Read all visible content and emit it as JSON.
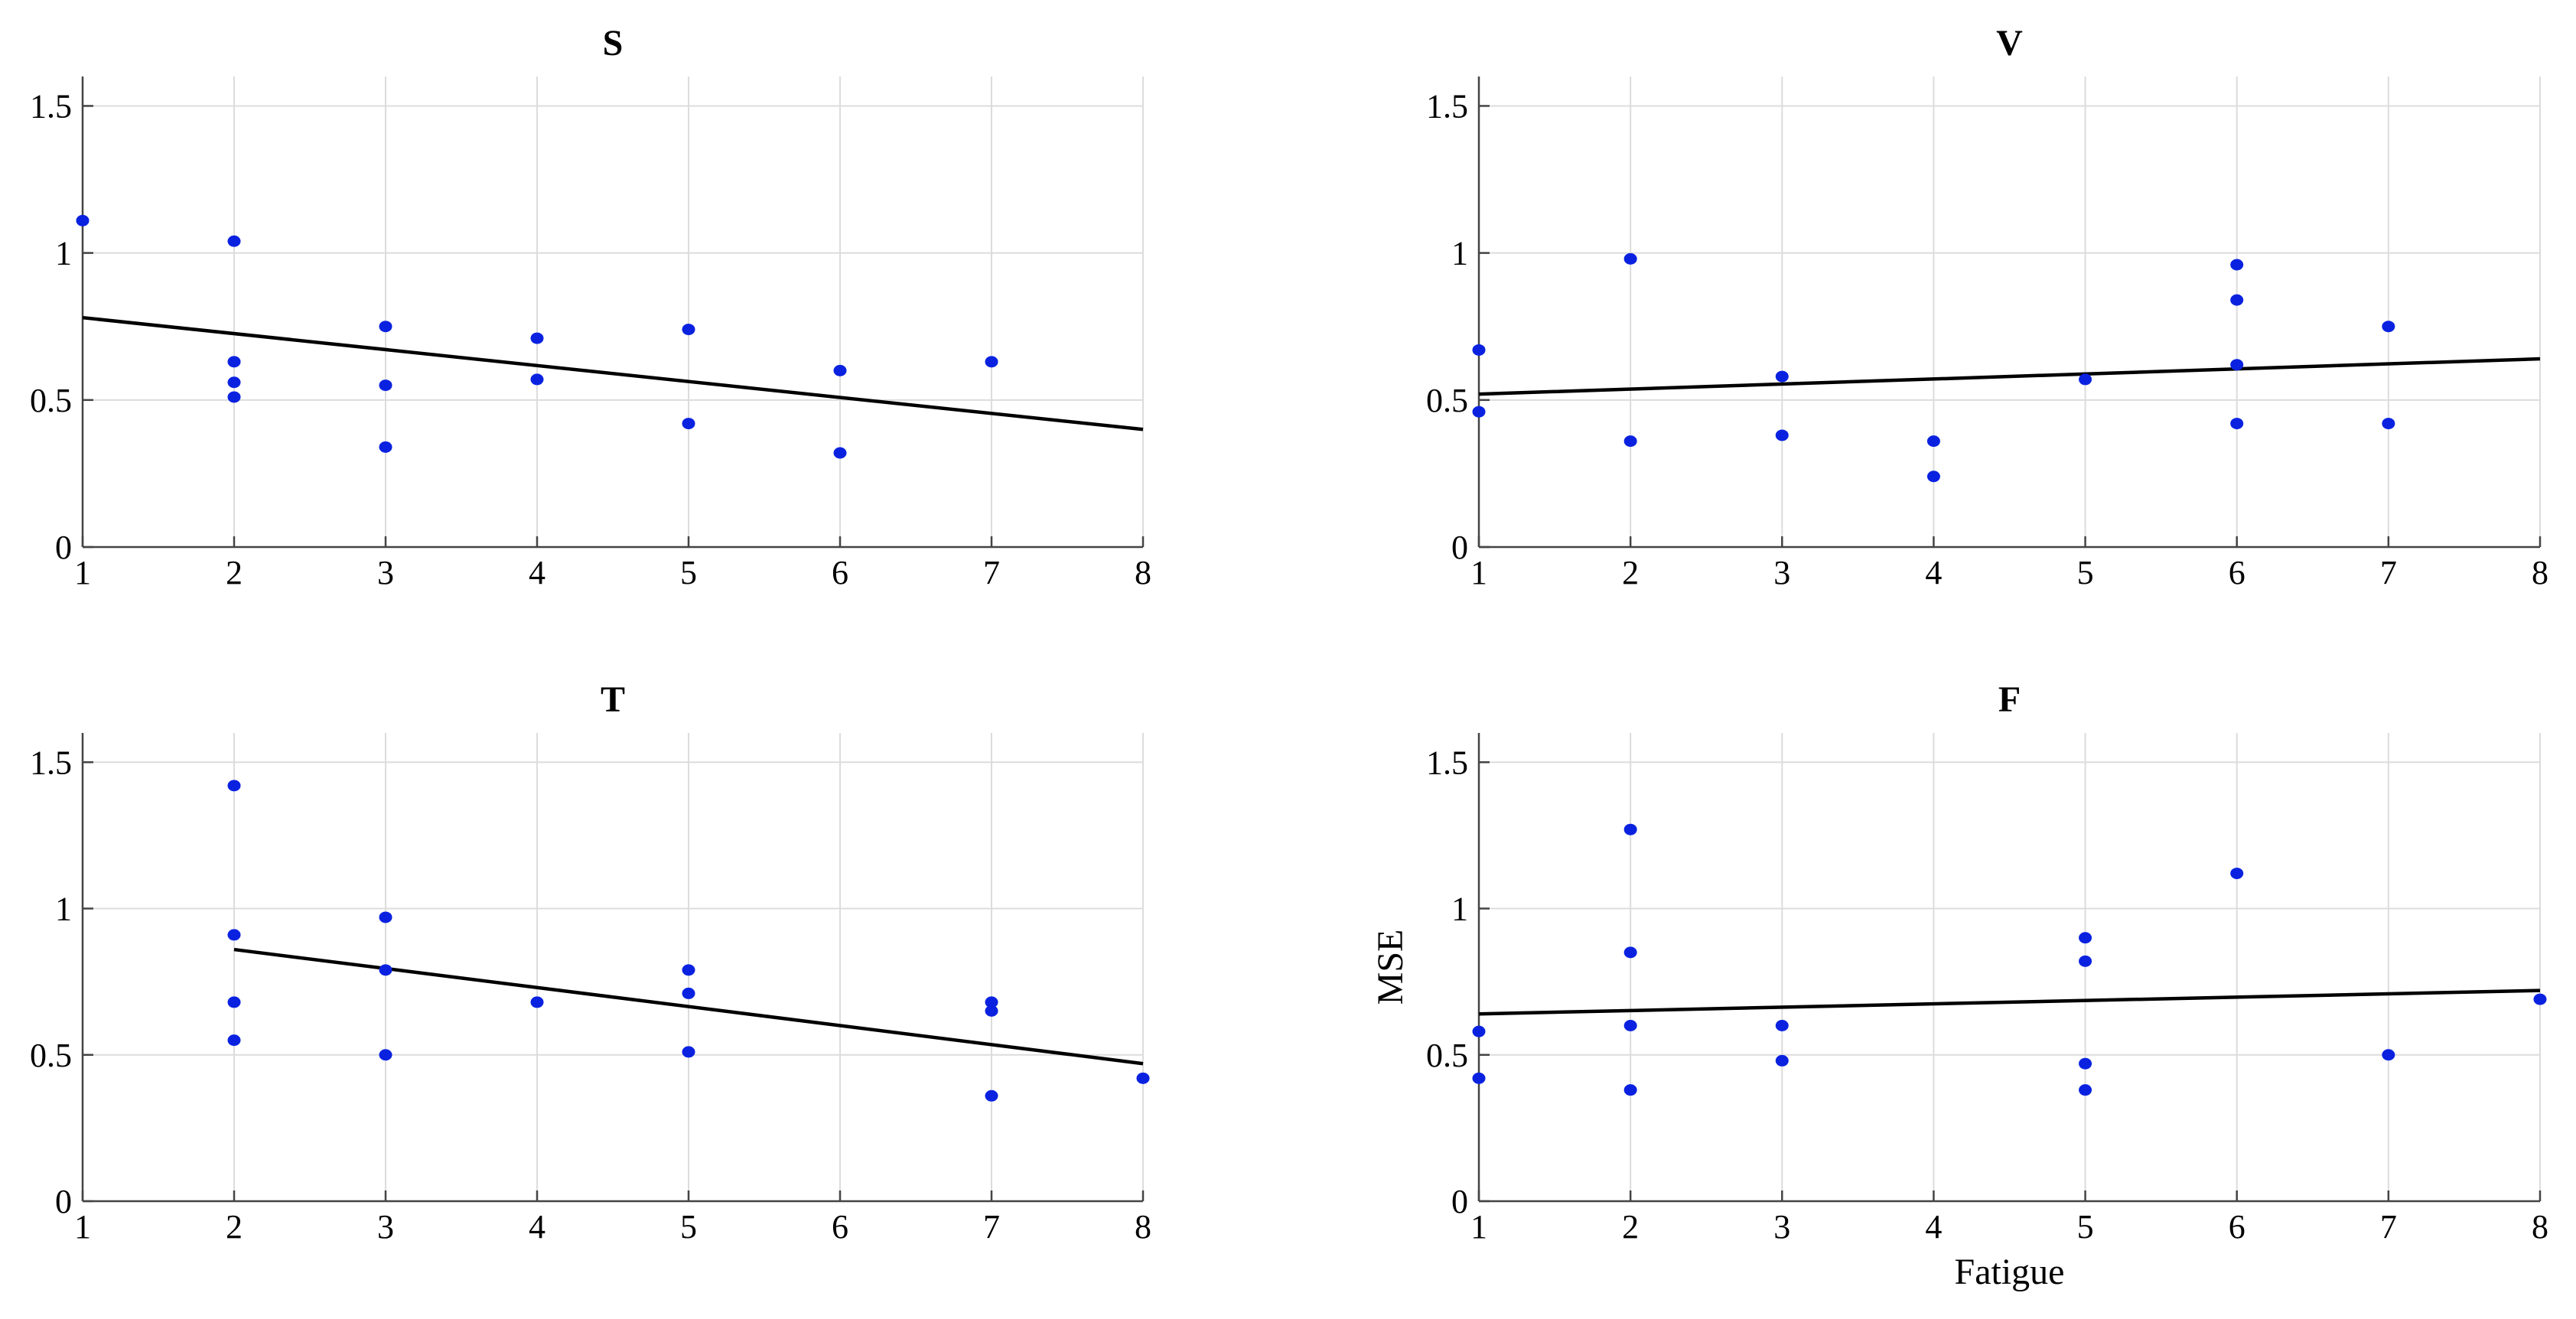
{
  "colors": {
    "marker": "#0a22e0",
    "trend": "#000000",
    "axis": "#444444",
    "grid": "#dcdcdc",
    "background": "#ffffff"
  },
  "chart_data": [
    {
      "type": "scatter",
      "title": "S",
      "xlabel": "",
      "ylabel": "",
      "xlim": [
        1,
        8
      ],
      "ylim": [
        0,
        1.6
      ],
      "xticks": [
        "1",
        "2",
        "3",
        "4",
        "5",
        "6",
        "7",
        "8"
      ],
      "yticks": [
        "0",
        "0.5",
        "1",
        "1.5"
      ],
      "grid": true,
      "points": [
        [
          1,
          1.11
        ],
        [
          2,
          1.04
        ],
        [
          2,
          0.63
        ],
        [
          2,
          0.56
        ],
        [
          2,
          0.51
        ],
        [
          3,
          0.75
        ],
        [
          3,
          0.55
        ],
        [
          3,
          0.34
        ],
        [
          4,
          0.71
        ],
        [
          4,
          0.57
        ],
        [
          5,
          0.74
        ],
        [
          5,
          0.42
        ],
        [
          6,
          0.6
        ],
        [
          6,
          0.32
        ],
        [
          7,
          0.63
        ]
      ],
      "trendline": [
        [
          1,
          0.78
        ],
        [
          8,
          0.4
        ]
      ]
    },
    {
      "type": "scatter",
      "title": "V",
      "xlabel": "",
      "ylabel": "",
      "xlim": [
        1,
        8
      ],
      "ylim": [
        0,
        1.6
      ],
      "xticks": [
        "1",
        "2",
        "3",
        "4",
        "5",
        "6",
        "7",
        "8"
      ],
      "yticks": [
        "0",
        "0.5",
        "1",
        "1.5"
      ],
      "grid": true,
      "points": [
        [
          1,
          0.67
        ],
        [
          1,
          0.46
        ],
        [
          2,
          0.98
        ],
        [
          2,
          0.36
        ],
        [
          3,
          0.58
        ],
        [
          3,
          0.38
        ],
        [
          4,
          0.36
        ],
        [
          4,
          0.24
        ],
        [
          5,
          0.57
        ],
        [
          6,
          0.96
        ],
        [
          6,
          0.84
        ],
        [
          6,
          0.62
        ],
        [
          6,
          0.42
        ],
        [
          7,
          0.75
        ],
        [
          7,
          0.42
        ]
      ],
      "trendline": [
        [
          1,
          0.52
        ],
        [
          8,
          0.64
        ]
      ]
    },
    {
      "type": "scatter",
      "title": "T",
      "xlabel": "",
      "ylabel": "",
      "xlim": [
        1,
        8
      ],
      "ylim": [
        0,
        1.6
      ],
      "xticks": [
        "1",
        "2",
        "3",
        "4",
        "5",
        "6",
        "7",
        "8"
      ],
      "yticks": [
        "0",
        "0.5",
        "1",
        "1.5"
      ],
      "grid": true,
      "points": [
        [
          2,
          1.42
        ],
        [
          2,
          0.91
        ],
        [
          2,
          0.68
        ],
        [
          2,
          0.55
        ],
        [
          3,
          0.97
        ],
        [
          3,
          0.79
        ],
        [
          3,
          0.5
        ],
        [
          4,
          0.68
        ],
        [
          5,
          0.79
        ],
        [
          5,
          0.71
        ],
        [
          5,
          0.51
        ],
        [
          7,
          0.68
        ],
        [
          7,
          0.65
        ],
        [
          7,
          0.36
        ],
        [
          8,
          0.42
        ]
      ],
      "trendline": [
        [
          2,
          0.86
        ],
        [
          8,
          0.47
        ]
      ]
    },
    {
      "type": "scatter",
      "title": "F",
      "xlabel": "Fatigue",
      "ylabel": "MSE",
      "xlim": [
        1,
        8
      ],
      "ylim": [
        0,
        1.6
      ],
      "xticks": [
        "1",
        "2",
        "3",
        "4",
        "5",
        "6",
        "7",
        "8"
      ],
      "yticks": [
        "0",
        "0.5",
        "1",
        "1.5"
      ],
      "grid": true,
      "points": [
        [
          1,
          0.58
        ],
        [
          1,
          0.42
        ],
        [
          2,
          1.27
        ],
        [
          2,
          0.85
        ],
        [
          2,
          0.6
        ],
        [
          2,
          0.38
        ],
        [
          3,
          0.6
        ],
        [
          3,
          0.48
        ],
        [
          5,
          0.9
        ],
        [
          5,
          0.82
        ],
        [
          5,
          0.47
        ],
        [
          5,
          0.38
        ],
        [
          6,
          1.12
        ],
        [
          7,
          0.5
        ],
        [
          8,
          0.69
        ]
      ],
      "trendline": [
        [
          1,
          0.64
        ],
        [
          8,
          0.72
        ]
      ]
    }
  ]
}
